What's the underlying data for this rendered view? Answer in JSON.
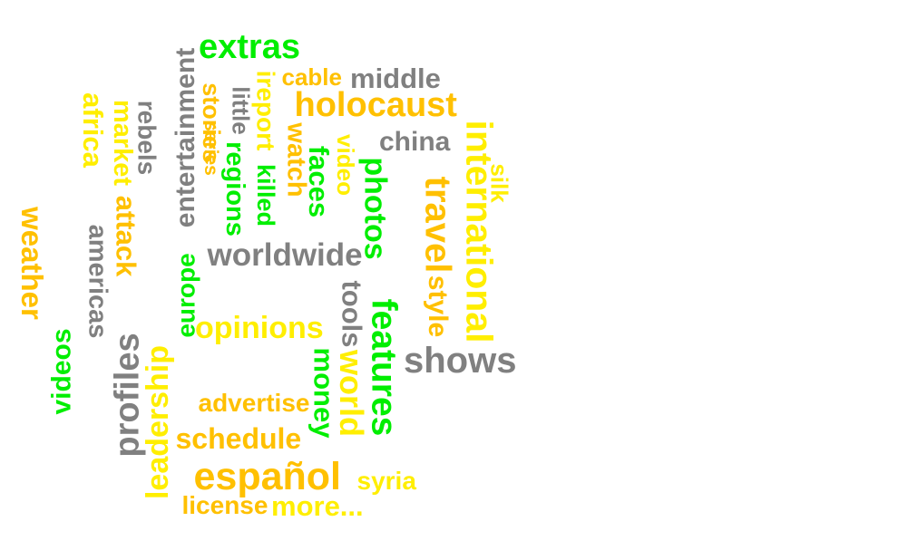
{
  "colors": {
    "green": "#00ee00",
    "gold": "#ffc000",
    "yellow": "#ffee00",
    "gray": "#808080"
  },
  "words": [
    {
      "text": "extras",
      "color": "green"
    },
    {
      "text": "cable",
      "color": "gold"
    },
    {
      "text": "middle",
      "color": "gray"
    },
    {
      "text": "holocaust",
      "color": "gold"
    },
    {
      "text": "china",
      "color": "gray"
    },
    {
      "text": "entertainment",
      "color": "gray"
    },
    {
      "text": "stories",
      "color": "gold"
    },
    {
      "text": "series",
      "color": "gold"
    },
    {
      "text": "little",
      "color": "gray"
    },
    {
      "text": "ireport",
      "color": "yellow"
    },
    {
      "text": "regions",
      "color": "green"
    },
    {
      "text": "killed",
      "color": "green"
    },
    {
      "text": "watch",
      "color": "gold"
    },
    {
      "text": "faces",
      "color": "green"
    },
    {
      "text": "video",
      "color": "yellow"
    },
    {
      "text": "photos",
      "color": "green"
    },
    {
      "text": "international",
      "color": "yellow"
    },
    {
      "text": "travel",
      "color": "gold"
    },
    {
      "text": "silk",
      "color": "yellow"
    },
    {
      "text": "style",
      "color": "gold"
    },
    {
      "text": "africa",
      "color": "yellow"
    },
    {
      "text": "market",
      "color": "yellow"
    },
    {
      "text": "rebels",
      "color": "gray"
    },
    {
      "text": "attack",
      "color": "gold"
    },
    {
      "text": "americas",
      "color": "gray"
    },
    {
      "text": "weather",
      "color": "gold"
    },
    {
      "text": "europe",
      "color": "green"
    },
    {
      "text": "worldwide",
      "color": "gray"
    },
    {
      "text": "tools",
      "color": "gray"
    },
    {
      "text": "world",
      "color": "yellow"
    },
    {
      "text": "features",
      "color": "green"
    },
    {
      "text": "money",
      "color": "green"
    },
    {
      "text": "opinions",
      "color": "yellow"
    },
    {
      "text": "shows",
      "color": "gray"
    },
    {
      "text": "videos",
      "color": "green"
    },
    {
      "text": "profiles",
      "color": "gray"
    },
    {
      "text": "leadership",
      "color": "yellow"
    },
    {
      "text": "advertise",
      "color": "gold"
    },
    {
      "text": "schedule",
      "color": "gold"
    },
    {
      "text": "español",
      "color": "gold"
    },
    {
      "text": "syria",
      "color": "yellow"
    },
    {
      "text": "license",
      "color": "gold"
    },
    {
      "text": "more...",
      "color": "yellow"
    }
  ]
}
